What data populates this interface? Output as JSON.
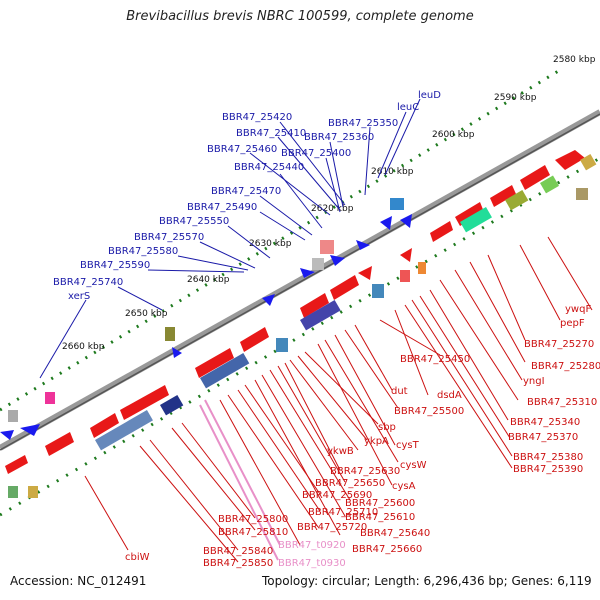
{
  "title": "Brevibacillus brevis NBRC 100599, complete genome",
  "footer": {
    "accession": "Accession: NC_012491",
    "summary": "Topology: circular; Length: 6,296,436 bp; Genes: 6,119"
  },
  "colors": {
    "label_blue": "#1a1aa8",
    "label_red": "#cc1111",
    "label_pink": "#e890c8",
    "forward_gene": "#e81818",
    "reverse_gene": "#1a1aee",
    "tick_green": "#1e7a1e",
    "backbone": "#888888"
  },
  "kbp_ticks": [
    "2580 kbp",
    "2590 kbp",
    "2600 kbp",
    "2610 kbp",
    "2620 kbp",
    "2630 kbp",
    "2640 kbp",
    "2650 kbp",
    "2660 kbp"
  ],
  "blue_labels": [
    "leuD",
    "leuC",
    "BBR47_25420",
    "BBR47_25350",
    "BBR47_25410",
    "BBR47_25360",
    "BBR47_25460",
    "BBR47_25400",
    "BBR47_25440",
    "BBR47_25470",
    "BBR47_25490",
    "BBR47_25550",
    "BBR47_25570",
    "BBR47_25580",
    "BBR47_25590",
    "BBR47_25740",
    "xerS"
  ],
  "red_labels": [
    "ywqF",
    "pepF",
    "BBR47_25270",
    "BBR47_25280",
    "yngI",
    "BBR47_25310",
    "BBR47_25340",
    "BBR47_25370",
    "BBR47_25380",
    "BBR47_25390",
    "BBR47_25450",
    "dsdA",
    "dut",
    "BBR47_25500",
    "cysT",
    "cysW",
    "cysA",
    "sbp",
    "ykpA",
    "ykwB",
    "BBR47_25630",
    "BBR47_25650",
    "BBR47_25600",
    "BBR47_25610",
    "BBR47_25690",
    "BBR47_25710",
    "BBR47_25640",
    "BBR47_25720",
    "BBR47_25660",
    "BBR47_25800",
    "BBR47_25810",
    "BBR47_25840",
    "BBR47_25850",
    "cbiW"
  ],
  "pink_labels": [
    "BBR47_t0920",
    "BBR47_t0930"
  ]
}
